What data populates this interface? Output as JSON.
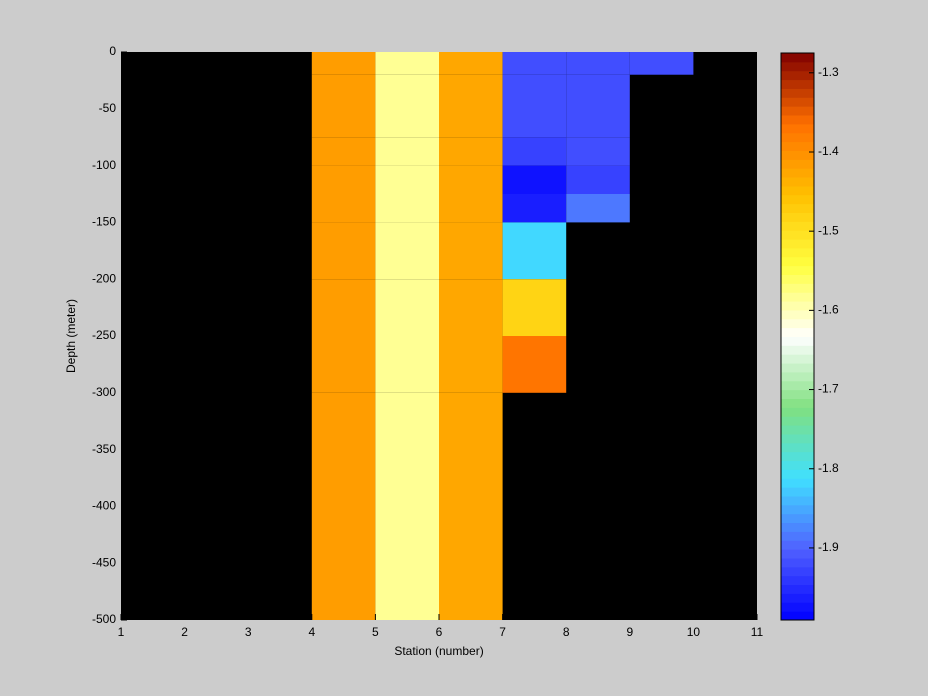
{
  "chart_data": {
    "type": "heatmap",
    "xlabel": "Station (number)",
    "ylabel": "Depth (meter)",
    "x_edges": [
      1,
      2,
      3,
      4,
      5,
      6,
      7,
      8,
      9,
      10,
      11
    ],
    "y_edges": [
      0,
      -20,
      -75,
      -100,
      -125,
      -150,
      -200,
      -250,
      -300,
      -500
    ],
    "values": [
      [
        null,
        null,
        null,
        -1.41,
        -1.58,
        -1.43,
        -1.92,
        -1.92,
        -1.92,
        null
      ],
      [
        null,
        null,
        null,
        -1.41,
        -1.58,
        -1.43,
        -1.92,
        -1.92,
        null,
        null
      ],
      [
        null,
        null,
        null,
        -1.41,
        -1.58,
        -1.43,
        -1.93,
        -1.92,
        null,
        null
      ],
      [
        null,
        null,
        null,
        -1.41,
        -1.58,
        -1.43,
        -1.97,
        -1.93,
        null,
        null
      ],
      [
        null,
        null,
        null,
        -1.41,
        -1.58,
        -1.43,
        -1.96,
        -1.88,
        null,
        null
      ],
      [
        null,
        null,
        null,
        -1.41,
        -1.58,
        -1.43,
        -1.82,
        null,
        null,
        null
      ],
      [
        null,
        null,
        null,
        -1.41,
        -1.58,
        -1.43,
        -1.48,
        null,
        null,
        null
      ],
      [
        null,
        null,
        null,
        -1.41,
        -1.58,
        -1.43,
        -1.37,
        null,
        null,
        null
      ],
      [
        null,
        null,
        null,
        -1.41,
        -1.58,
        -1.43,
        null,
        null,
        null,
        null
      ]
    ],
    "xlim": [
      1,
      11
    ],
    "xticks": [
      1,
      2,
      3,
      4,
      5,
      6,
      7,
      8,
      9,
      10,
      11
    ],
    "ylim": [
      -500,
      0
    ],
    "yticks": [
      0,
      -50,
      -100,
      -150,
      -200,
      -250,
      -300,
      -350,
      -400,
      -450,
      -500
    ],
    "clim": [
      -1.991,
      -1.275
    ],
    "cticks": [
      -1.3,
      -1.4,
      -1.5,
      -1.6,
      -1.7,
      -1.8,
      -1.9
    ],
    "colormap": [
      "#0000ff",
      "#5060ff",
      "#40e0ff",
      "#80e080",
      "#ffffff",
      "#ffff40",
      "#ffc000",
      "#ff7000",
      "#800000"
    ],
    "background": "#000000"
  }
}
